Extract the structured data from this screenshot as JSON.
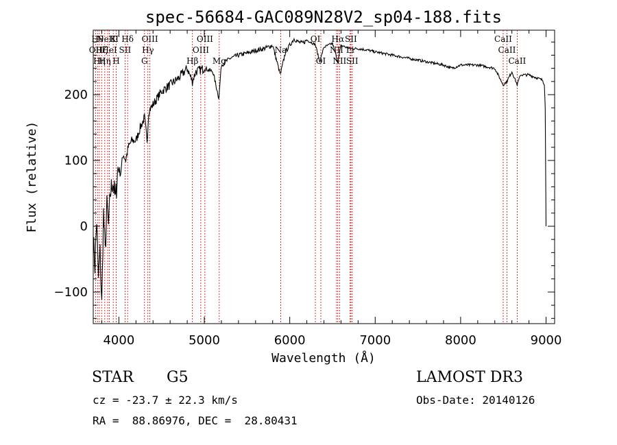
{
  "chart_data": {
    "type": "line",
    "title": "spec-56684-GAC089N28V2_sp04-188.fits",
    "xlabel": "Wavelength (Å)",
    "ylabel": "Flux (relative)",
    "xlim": [
      3700,
      9100
    ],
    "ylim": [
      -148,
      298
    ],
    "xticks": [
      4000,
      5000,
      6000,
      7000,
      8000,
      9000
    ],
    "yticks": [
      -100,
      0,
      100,
      200
    ],
    "grid": false,
    "line_color": "#000000",
    "marker_color": "#cc0000",
    "spectrum": {
      "x": [
        3700,
        3720,
        3740,
        3760,
        3780,
        3800,
        3820,
        3840,
        3860,
        3880,
        3900,
        3930,
        3960,
        3990,
        4020,
        4050,
        4080,
        4110,
        4150,
        4200,
        4250,
        4300,
        4330,
        4350,
        4400,
        4450,
        4500,
        4600,
        4700,
        4800,
        4860,
        4900,
        5000,
        5100,
        5170,
        5200,
        5300,
        5400,
        5500,
        5600,
        5700,
        5800,
        5890,
        5950,
        6000,
        6050,
        6100,
        6150,
        6200,
        6300,
        6350,
        6400,
        6500,
        6563,
        6600,
        6700,
        6800,
        6900,
        7000,
        7200,
        7400,
        7600,
        7800,
        7900,
        8000,
        8200,
        8400,
        8498,
        8542,
        8600,
        8662,
        8700,
        8800,
        8900,
        8960,
        8980,
        8990,
        9000
      ],
      "y": [
        -20,
        -60,
        10,
        -80,
        -40,
        -120,
        20,
        -40,
        30,
        0,
        50,
        70,
        40,
        90,
        80,
        110,
        100,
        120,
        130,
        130,
        150,
        165,
        130,
        175,
        185,
        195,
        205,
        215,
        225,
        240,
        220,
        235,
        240,
        235,
        195,
        245,
        255,
        260,
        263,
        267,
        270,
        275,
        230,
        265,
        275,
        285,
        280,
        278,
        283,
        276,
        250,
        272,
        278,
        250,
        275,
        270,
        270,
        268,
        265,
        260,
        255,
        250,
        245,
        240,
        245,
        245,
        240,
        215,
        220,
        235,
        215,
        230,
        230,
        225,
        222,
        215,
        180,
        0
      ]
    },
    "lines": [
      {
        "wave": 3727,
        "label": "OII",
        "row": 1
      },
      {
        "wave": 3750,
        "label": "Hθ",
        "row": 0
      },
      {
        "wave": 3771,
        "label": "Hη",
        "row": 2
      },
      {
        "wave": 3798,
        "label": "Hζ",
        "row": 1
      },
      {
        "wave": 3835,
        "label": "Hη",
        "row": 2
      },
      {
        "wave": 3869,
        "label": "NeIII",
        "row": 0
      },
      {
        "wave": 3889,
        "label": "HeI",
        "row": 1
      },
      {
        "wave": 3934,
        "label": "K",
        "row": 0
      },
      {
        "wave": 3969,
        "label": "H",
        "row": 2
      },
      {
        "wave": 4072,
        "label": "SII",
        "row": 1
      },
      {
        "wave": 4102,
        "label": "Hδ",
        "row": 0
      },
      {
        "wave": 4300,
        "label": "G",
        "row": 2
      },
      {
        "wave": 4340,
        "label": "Hγ",
        "row": 1
      },
      {
        "wave": 4363,
        "label": "OIII",
        "row": 0
      },
      {
        "wave": 4861,
        "label": "Hβ",
        "row": 2
      },
      {
        "wave": 4959,
        "label": "OIII",
        "row": 1
      },
      {
        "wave": 5007,
        "label": "OIII",
        "row": 0
      },
      {
        "wave": 5175,
        "label": "Mg",
        "row": 2
      },
      {
        "wave": 5894,
        "label": "Na",
        "row": 1
      },
      {
        "wave": 6300,
        "label": "OI",
        "row": 0
      },
      {
        "wave": 6364,
        "label": "OI",
        "row": 2
      },
      {
        "wave": 6548,
        "label": "NII",
        "row": 1
      },
      {
        "wave": 6563,
        "label": "Hα",
        "row": 0
      },
      {
        "wave": 6583,
        "label": "NII",
        "row": 2
      },
      {
        "wave": 6707,
        "label": "Li",
        "row": 1
      },
      {
        "wave": 6716,
        "label": "SII",
        "row": 0
      },
      {
        "wave": 6731,
        "label": "SII",
        "row": 2
      },
      {
        "wave": 8498,
        "label": "CaII",
        "row": 0
      },
      {
        "wave": 8542,
        "label": "CaII",
        "row": 1
      },
      {
        "wave": 8662,
        "label": "CaII",
        "row": 2
      }
    ]
  },
  "info": {
    "class": "STAR",
    "subclass": "G5",
    "survey": "LAMOST DR3",
    "cz": "cz = -23.7 ± 22.3 km/s",
    "obs_date": "Obs-Date: 20140126",
    "coords": "RA =  88.86976, DEC =  28.80431"
  }
}
